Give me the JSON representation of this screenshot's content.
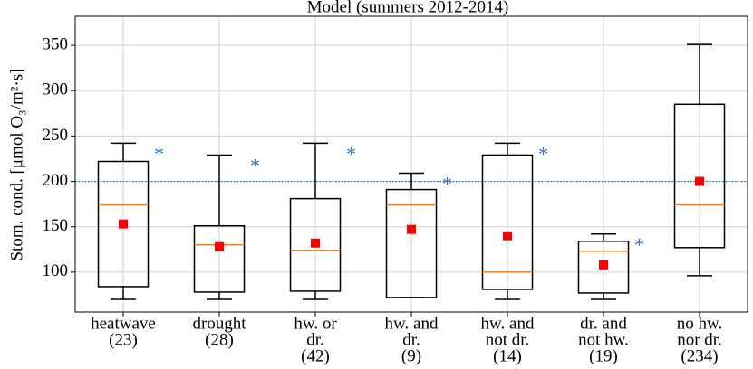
{
  "chart_data": {
    "type": "box",
    "title": "Model (summers 2012-2014)",
    "ylabel": "Stom. cond. [μmol O₃/m²·s]",
    "categories": [
      [
        "heatwave",
        "(23)"
      ],
      [
        "drought",
        "(28)"
      ],
      [
        "hw. or",
        "dr.",
        "(42)"
      ],
      [
        "hw. and",
        "dr.",
        "(9)"
      ],
      [
        "hw. and",
        "not dr.",
        "(14)"
      ],
      [
        "dr. and",
        "not hw.",
        "(19)"
      ],
      [
        "no hw.",
        "nor dr.",
        "(234)"
      ]
    ],
    "whisker_low": [
      70,
      70,
      70,
      72,
      70,
      70,
      96
    ],
    "q1": [
      84,
      78,
      79,
      72,
      81,
      77,
      127
    ],
    "median": [
      174,
      130,
      124,
      174,
      100,
      123,
      174
    ],
    "q3": [
      222,
      151,
      181,
      191,
      229,
      134,
      285
    ],
    "whisker_high": [
      242,
      229,
      242,
      209,
      242,
      142,
      351
    ],
    "mean": [
      153,
      128,
      132,
      147,
      140,
      108,
      200
    ],
    "significance": [
      "*",
      "*",
      "*",
      "*",
      "*",
      "*",
      null
    ],
    "reference_line": 200,
    "ylim": [
      56,
      382
    ],
    "yticks": [
      100,
      150,
      200,
      250,
      300,
      350
    ],
    "grid": true,
    "box_color": "#000000",
    "median_color": "#ff7f0e",
    "mean_color": "#ff0000",
    "significance_color": "#3a72c8",
    "reference_color": "#1f77b4"
  }
}
